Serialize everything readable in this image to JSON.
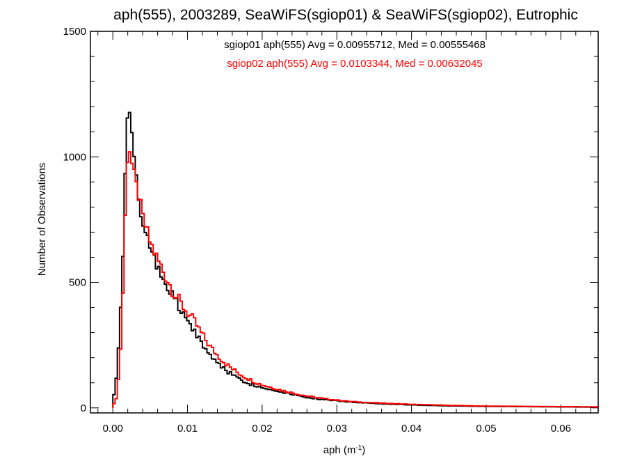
{
  "chart_data": {
    "type": "histogram-step",
    "title": "aph(555), 2003289, SeaWiFS(sgiop01) & SeaWiFS(sgiop02), Eutrophic",
    "xlabel_base": "aph (m",
    "xlabel_exp": "-1",
    "xlabel_close": ")",
    "ylabel": "Number of Observations",
    "xlim": [
      -0.003,
      0.065
    ],
    "ylim": [
      -20,
      1500
    ],
    "xticks": [
      0.0,
      0.01,
      0.02,
      0.03,
      0.04,
      0.05,
      0.06
    ],
    "xtick_labels": [
      "0.00",
      "0.01",
      "0.02",
      "0.03",
      "0.04",
      "0.05",
      "0.06"
    ],
    "yticks": [
      0,
      500,
      1000,
      1500
    ],
    "ytick_labels": [
      "0",
      "500",
      "1000",
      "1500"
    ],
    "bin_width": 0.0003,
    "series": [
      {
        "name": "sgiop01",
        "color": "#000000",
        "legend_text": "sgiop01 aph(555) Avg = 0.00955712, Med = 0.00555468",
        "points": [
          [
            0.0,
            20
          ],
          [
            0.0006,
            160
          ],
          [
            0.0012,
            500
          ],
          [
            0.0015,
            760
          ],
          [
            0.0018,
            1050
          ],
          [
            0.002,
            1220
          ],
          [
            0.0023,
            1180
          ],
          [
            0.0026,
            1050
          ],
          [
            0.003,
            950
          ],
          [
            0.0035,
            820
          ],
          [
            0.004,
            730
          ],
          [
            0.005,
            620
          ],
          [
            0.006,
            560
          ],
          [
            0.007,
            500
          ],
          [
            0.008,
            440
          ],
          [
            0.009,
            390
          ],
          [
            0.01,
            345
          ],
          [
            0.011,
            300
          ],
          [
            0.012,
            255
          ],
          [
            0.013,
            210
          ],
          [
            0.014,
            180
          ],
          [
            0.015,
            155
          ],
          [
            0.016,
            132
          ],
          [
            0.017,
            115
          ],
          [
            0.018,
            100
          ],
          [
            0.019,
            90
          ],
          [
            0.02,
            80
          ],
          [
            0.022,
            68
          ],
          [
            0.024,
            55
          ],
          [
            0.026,
            42
          ],
          [
            0.028,
            34
          ],
          [
            0.03,
            28
          ],
          [
            0.032,
            23
          ],
          [
            0.035,
            18
          ],
          [
            0.04,
            12
          ],
          [
            0.045,
            8
          ],
          [
            0.05,
            6
          ],
          [
            0.055,
            5
          ],
          [
            0.06,
            4
          ],
          [
            0.065,
            3
          ]
        ]
      },
      {
        "name": "sgiop02",
        "color": "#ff0000",
        "legend_text": "sgiop02 aph(555) Avg = 0.0103344, Med = 0.00632045",
        "points": [
          [
            0.0,
            5
          ],
          [
            0.0006,
            50
          ],
          [
            0.0012,
            300
          ],
          [
            0.0015,
            620
          ],
          [
            0.0018,
            900
          ],
          [
            0.002,
            1030
          ],
          [
            0.0023,
            1030
          ],
          [
            0.0026,
            960
          ],
          [
            0.003,
            900
          ],
          [
            0.0035,
            840
          ],
          [
            0.004,
            760
          ],
          [
            0.005,
            660
          ],
          [
            0.006,
            590
          ],
          [
            0.007,
            530
          ],
          [
            0.008,
            470
          ],
          [
            0.009,
            420
          ],
          [
            0.01,
            380
          ],
          [
            0.011,
            340
          ],
          [
            0.012,
            290
          ],
          [
            0.013,
            245
          ],
          [
            0.014,
            210
          ],
          [
            0.015,
            180
          ],
          [
            0.016,
            155
          ],
          [
            0.017,
            135
          ],
          [
            0.018,
            118
          ],
          [
            0.019,
            103
          ],
          [
            0.02,
            92
          ],
          [
            0.022,
            75
          ],
          [
            0.024,
            60
          ],
          [
            0.026,
            47
          ],
          [
            0.028,
            38
          ],
          [
            0.03,
            31
          ],
          [
            0.032,
            25
          ],
          [
            0.035,
            20
          ],
          [
            0.04,
            14
          ],
          [
            0.045,
            10
          ],
          [
            0.05,
            7
          ],
          [
            0.055,
            6
          ],
          [
            0.06,
            5
          ],
          [
            0.065,
            4
          ]
        ]
      }
    ]
  }
}
